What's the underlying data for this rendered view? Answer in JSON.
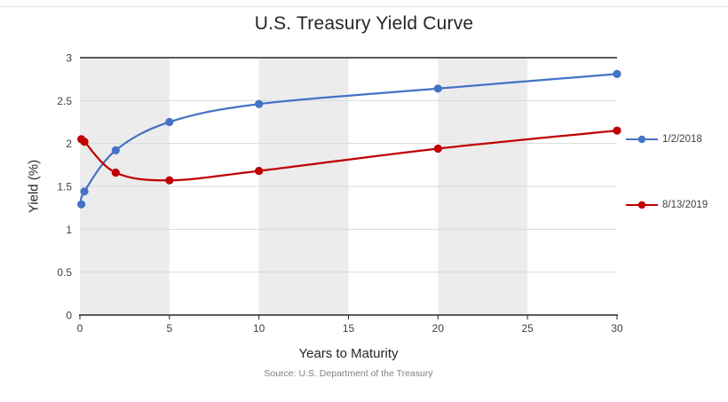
{
  "source_note": "Source: U.S. Department of the Treasury",
  "chart_data": {
    "type": "line",
    "title": "U.S. Treasury Yield Curve",
    "xlabel": "Years to Maturity",
    "ylabel": "Yield (%)",
    "xlim": [
      0,
      30
    ],
    "ylim": [
      0,
      3
    ],
    "x_ticks": [
      0,
      5,
      10,
      15,
      20,
      25,
      30
    ],
    "y_ticks": [
      0,
      0.5,
      1,
      1.5,
      2,
      2.5,
      3
    ],
    "grid": "horizontal",
    "legend_position": "right",
    "plot_band_intervals_x": [
      [
        0,
        5
      ],
      [
        10,
        15
      ],
      [
        20,
        25
      ]
    ],
    "colors": {
      "band": "#ececec",
      "grid": "#d9d9d9",
      "axis": "#262626",
      "title_text": "#262626",
      "source_text": "#7f7f7f"
    },
    "series": [
      {
        "name": "1/2/2018",
        "color": "#4472c4",
        "x": [
          0.08,
          0.25,
          2,
          5,
          10,
          20,
          30
        ],
        "values": [
          1.29,
          1.44,
          1.92,
          2.25,
          2.46,
          2.64,
          2.81
        ]
      },
      {
        "name": "8/13/2019",
        "color": "#c00000",
        "x": [
          0.08,
          0.25,
          2,
          5,
          10,
          20,
          30
        ],
        "values": [
          2.05,
          2.02,
          1.66,
          1.57,
          1.68,
          1.94,
          2.15
        ]
      }
    ]
  }
}
